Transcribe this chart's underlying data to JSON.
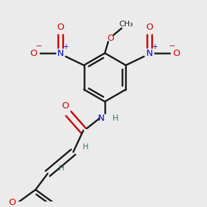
{
  "bg_color": "#ebebeb",
  "BK": "#1a1a1a",
  "RD": "#cc0000",
  "BL": "#0000cc",
  "GR": "#2d7070",
  "figsize": [
    3.0,
    3.0
  ],
  "dpi": 100,
  "xlim": [
    0,
    300
  ],
  "ylim": [
    0,
    300
  ]
}
